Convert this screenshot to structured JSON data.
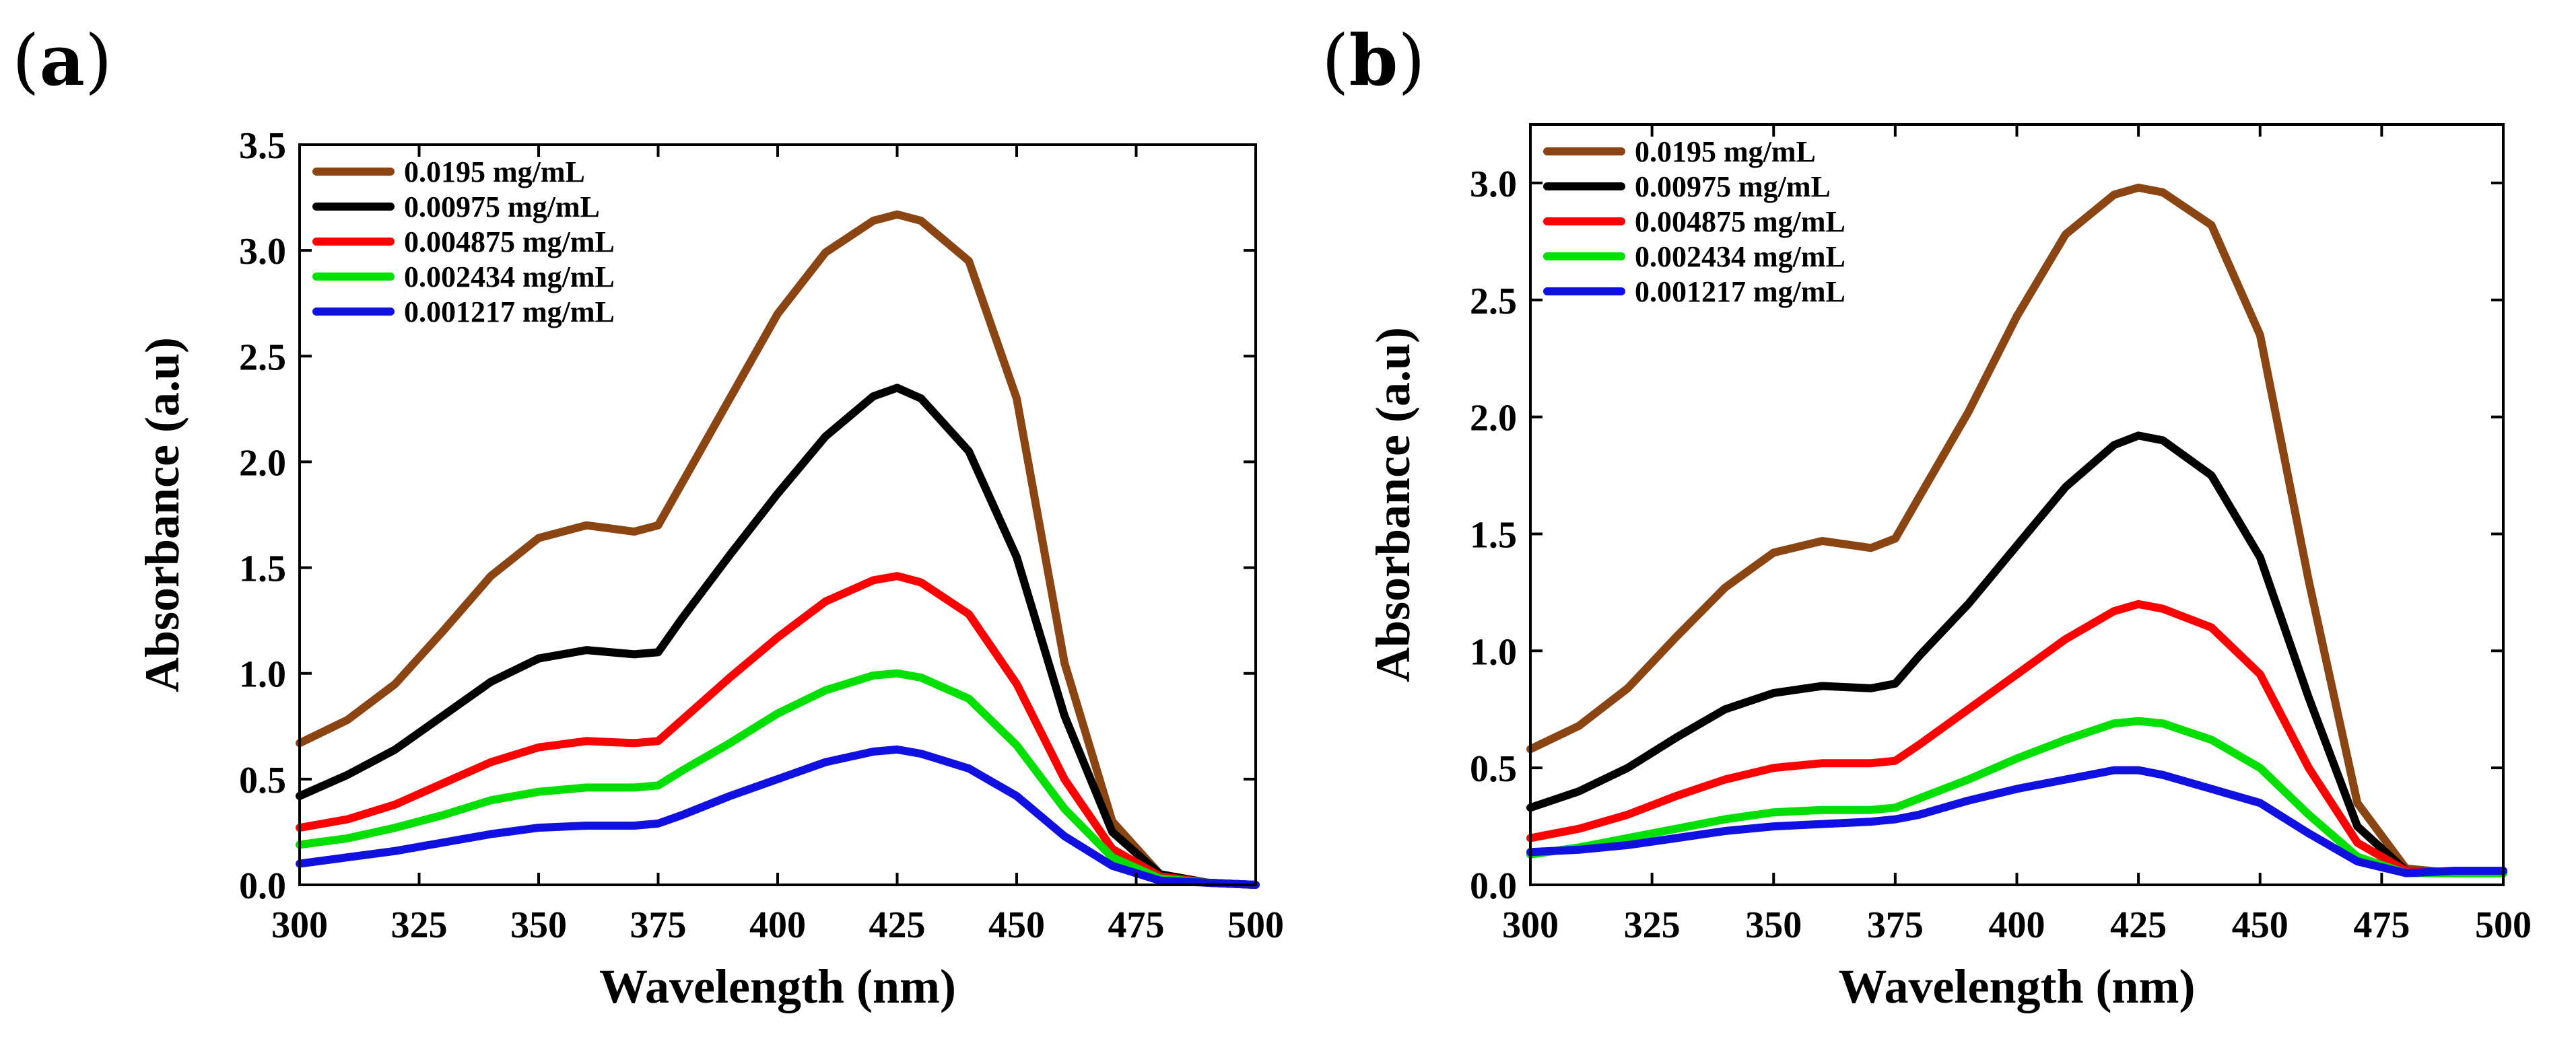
{
  "panels": [
    {
      "label": "a",
      "chart_data": {
        "type": "line",
        "title": "",
        "xlabel": "Wavelength (nm)",
        "ylabel": "Absorbance (a.u)",
        "xlim": [
          300,
          500
        ],
        "ylim": [
          0,
          3.5
        ],
        "xticks": [
          300,
          325,
          350,
          375,
          400,
          425,
          450,
          475,
          500
        ],
        "yticks": [
          0.0,
          0.5,
          1.0,
          1.5,
          2.0,
          2.5,
          3.0,
          3.5
        ],
        "xtick_labels": [
          "300",
          "325",
          "350",
          "375",
          "400",
          "425",
          "450",
          "475",
          "500"
        ],
        "ytick_labels": [
          "0.0",
          "0.5",
          "1.0",
          "1.5",
          "2.0",
          "2.5",
          "3.0",
          "3.5"
        ],
        "legend_position": "top-left",
        "x": [
          300,
          310,
          320,
          330,
          340,
          350,
          360,
          370,
          375,
          380,
          390,
          400,
          410,
          420,
          425,
          430,
          440,
          450,
          460,
          470,
          480,
          490,
          500
        ],
        "series": [
          {
            "name": "0.0195 mg/mL",
            "color": "#8B4513",
            "values": [
              0.67,
              0.78,
              0.95,
              1.2,
              1.46,
              1.64,
              1.7,
              1.67,
              1.7,
              1.9,
              2.3,
              2.7,
              2.99,
              3.14,
              3.17,
              3.14,
              2.95,
              2.3,
              1.05,
              0.3,
              0.05,
              0.01,
              0.0
            ]
          },
          {
            "name": "0.00975 mg/mL",
            "color": "#000000",
            "values": [
              0.42,
              0.52,
              0.64,
              0.8,
              0.96,
              1.07,
              1.11,
              1.09,
              1.1,
              1.26,
              1.56,
              1.85,
              2.12,
              2.31,
              2.35,
              2.3,
              2.05,
              1.55,
              0.8,
              0.25,
              0.05,
              0.01,
              0.0
            ]
          },
          {
            "name": "0.004875 mg/mL",
            "color": "#FF0000",
            "values": [
              0.27,
              0.31,
              0.38,
              0.48,
              0.58,
              0.65,
              0.68,
              0.67,
              0.68,
              0.78,
              0.98,
              1.17,
              1.34,
              1.44,
              1.46,
              1.43,
              1.28,
              0.95,
              0.5,
              0.17,
              0.04,
              0.01,
              0.0
            ]
          },
          {
            "name": "0.002434  mg/mL",
            "color": "#00E000",
            "values": [
              0.19,
              0.22,
              0.27,
              0.33,
              0.4,
              0.44,
              0.46,
              0.46,
              0.47,
              0.54,
              0.67,
              0.81,
              0.92,
              0.99,
              1.0,
              0.98,
              0.88,
              0.66,
              0.36,
              0.13,
              0.03,
              0.01,
              0.0
            ]
          },
          {
            "name": "0.001217 mg/mL",
            "color": "#1010E0",
            "values": [
              0.1,
              0.13,
              0.16,
              0.2,
              0.24,
              0.27,
              0.28,
              0.28,
              0.29,
              0.33,
              0.42,
              0.5,
              0.58,
              0.63,
              0.64,
              0.62,
              0.55,
              0.42,
              0.23,
              0.09,
              0.02,
              0.01,
              0.0
            ]
          }
        ]
      }
    },
    {
      "label": "b",
      "chart_data": {
        "type": "line",
        "title": "",
        "xlabel": "Wavelength (nm)",
        "ylabel": "Absorbance (a.u)",
        "xlim": [
          300,
          500
        ],
        "ylim": [
          0,
          3.25
        ],
        "xticks": [
          300,
          325,
          350,
          375,
          400,
          425,
          450,
          475,
          500
        ],
        "yticks": [
          0.0,
          0.5,
          1.0,
          1.5,
          2.0,
          2.5,
          3.0
        ],
        "xtick_labels": [
          "300",
          "325",
          "350",
          "375",
          "400",
          "425",
          "450",
          "475",
          "500"
        ],
        "ytick_labels": [
          "0.0",
          "0.5",
          "1.0",
          "1.5",
          "2.0",
          "2.5",
          "3.0"
        ],
        "legend_position": "top-left",
        "x": [
          300,
          310,
          320,
          330,
          340,
          350,
          360,
          370,
          375,
          380,
          390,
          400,
          410,
          420,
          425,
          430,
          440,
          450,
          460,
          470,
          480,
          490,
          500
        ],
        "series": [
          {
            "name": "0.0195 mg/mL",
            "color": "#8B4513",
            "values": [
              0.58,
              0.68,
              0.84,
              1.06,
              1.27,
              1.42,
              1.47,
              1.44,
              1.48,
              1.66,
              2.02,
              2.43,
              2.78,
              2.95,
              2.98,
              2.96,
              2.82,
              2.35,
              1.3,
              0.35,
              0.07,
              0.05,
              0.05
            ]
          },
          {
            "name": "0.00975  mg/mL",
            "color": "#000000",
            "values": [
              0.33,
              0.4,
              0.5,
              0.63,
              0.75,
              0.82,
              0.85,
              0.84,
              0.86,
              0.98,
              1.2,
              1.45,
              1.7,
              1.88,
              1.92,
              1.9,
              1.75,
              1.4,
              0.8,
              0.25,
              0.06,
              0.05,
              0.05
            ]
          },
          {
            "name": "0.004875 mg/mL",
            "color": "#FF0000",
            "values": [
              0.2,
              0.24,
              0.3,
              0.38,
              0.45,
              0.5,
              0.52,
              0.52,
              0.53,
              0.6,
              0.75,
              0.9,
              1.05,
              1.17,
              1.2,
              1.18,
              1.1,
              0.9,
              0.5,
              0.18,
              0.06,
              0.05,
              0.05
            ]
          },
          {
            "name": "0.002434 mg/mL",
            "color": "#00E000",
            "values": [
              0.13,
              0.16,
              0.2,
              0.24,
              0.28,
              0.31,
              0.32,
              0.32,
              0.33,
              0.37,
              0.45,
              0.54,
              0.62,
              0.69,
              0.7,
              0.69,
              0.62,
              0.5,
              0.3,
              0.12,
              0.05,
              0.05,
              0.05
            ]
          },
          {
            "name": "0.001217 mg/mL",
            "color": "#1010E0",
            "values": [
              0.14,
              0.15,
              0.17,
              0.2,
              0.23,
              0.25,
              0.26,
              0.27,
              0.28,
              0.3,
              0.36,
              0.41,
              0.45,
              0.49,
              0.49,
              0.47,
              0.41,
              0.35,
              0.22,
              0.1,
              0.05,
              0.06,
              0.06
            ]
          }
        ]
      }
    }
  ]
}
